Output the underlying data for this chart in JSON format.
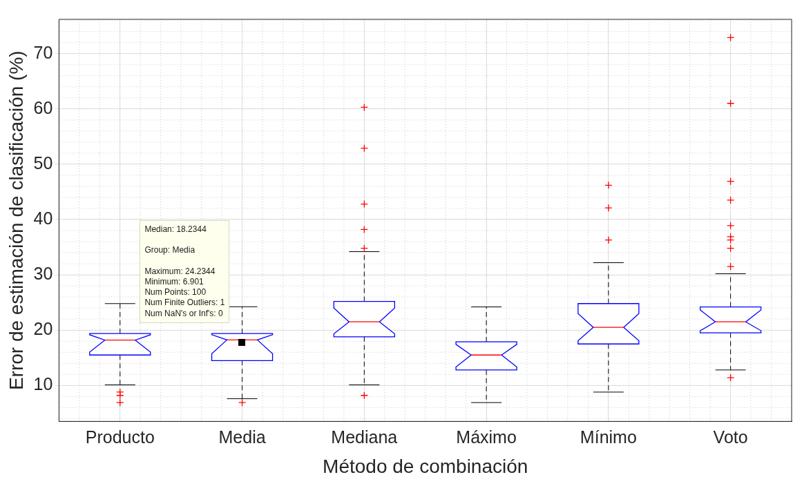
{
  "chart_data": {
    "type": "box",
    "xlabel": "Método de combinación",
    "ylabel": "Error de estimación de clasificación (%)",
    "categories": [
      "Producto",
      "Media",
      "Mediana",
      "Máximo",
      "Mínimo",
      "Voto"
    ],
    "ylim": [
      3.5,
      76.2
    ],
    "yticks": [
      10,
      20,
      30,
      40,
      50,
      60,
      70
    ],
    "grid": true,
    "legend": false,
    "marker": "cross",
    "series": [
      {
        "color": "#0000ff",
        "boxes": [
          {
            "low": 10.1,
            "q1": 15.5,
            "median": 18.2,
            "q3": 19.4,
            "high": 24.8,
            "outliers": [
              8.8,
              8.2,
              6.9
            ]
          },
          {
            "low": 7.6,
            "q1": 14.5,
            "median": 18.2344,
            "q3": 19.4,
            "high": 24.2344,
            "outliers": [
              6.901
            ]
          },
          {
            "low": 10.1,
            "q1": 18.8,
            "median": 21.5,
            "q3": 25.2,
            "high": 34.2,
            "outliers": [
              60.3,
              52.9,
              42.8,
              38.2,
              34.8,
              8.2
            ]
          },
          {
            "low": 6.9,
            "q1": 12.8,
            "median": 15.5,
            "q3": 17.9,
            "high": 24.2
          },
          {
            "low": 8.8,
            "q1": 17.5,
            "median": 20.5,
            "q3": 24.8,
            "high": 32.2,
            "outliers": [
              46.2,
              42.1,
              36.3
            ]
          },
          {
            "low": 12.8,
            "q1": 19.5,
            "median": 21.5,
            "q3": 24.2,
            "high": 30.2,
            "outliers": [
              72.9,
              61.0,
              46.9,
              43.5,
              38.9,
              36.9,
              36.3,
              34.8,
              31.5,
              11.4
            ]
          }
        ]
      }
    ],
    "annotations": [
      "Median: 18.2344",
      "Group: Media",
      "Maximum: 24.2344",
      "Minimum: 6.901",
      "Num Points: 100",
      "Num Finite Outliers: 1",
      "Num NaN's or Inf's: 0"
    ]
  }
}
